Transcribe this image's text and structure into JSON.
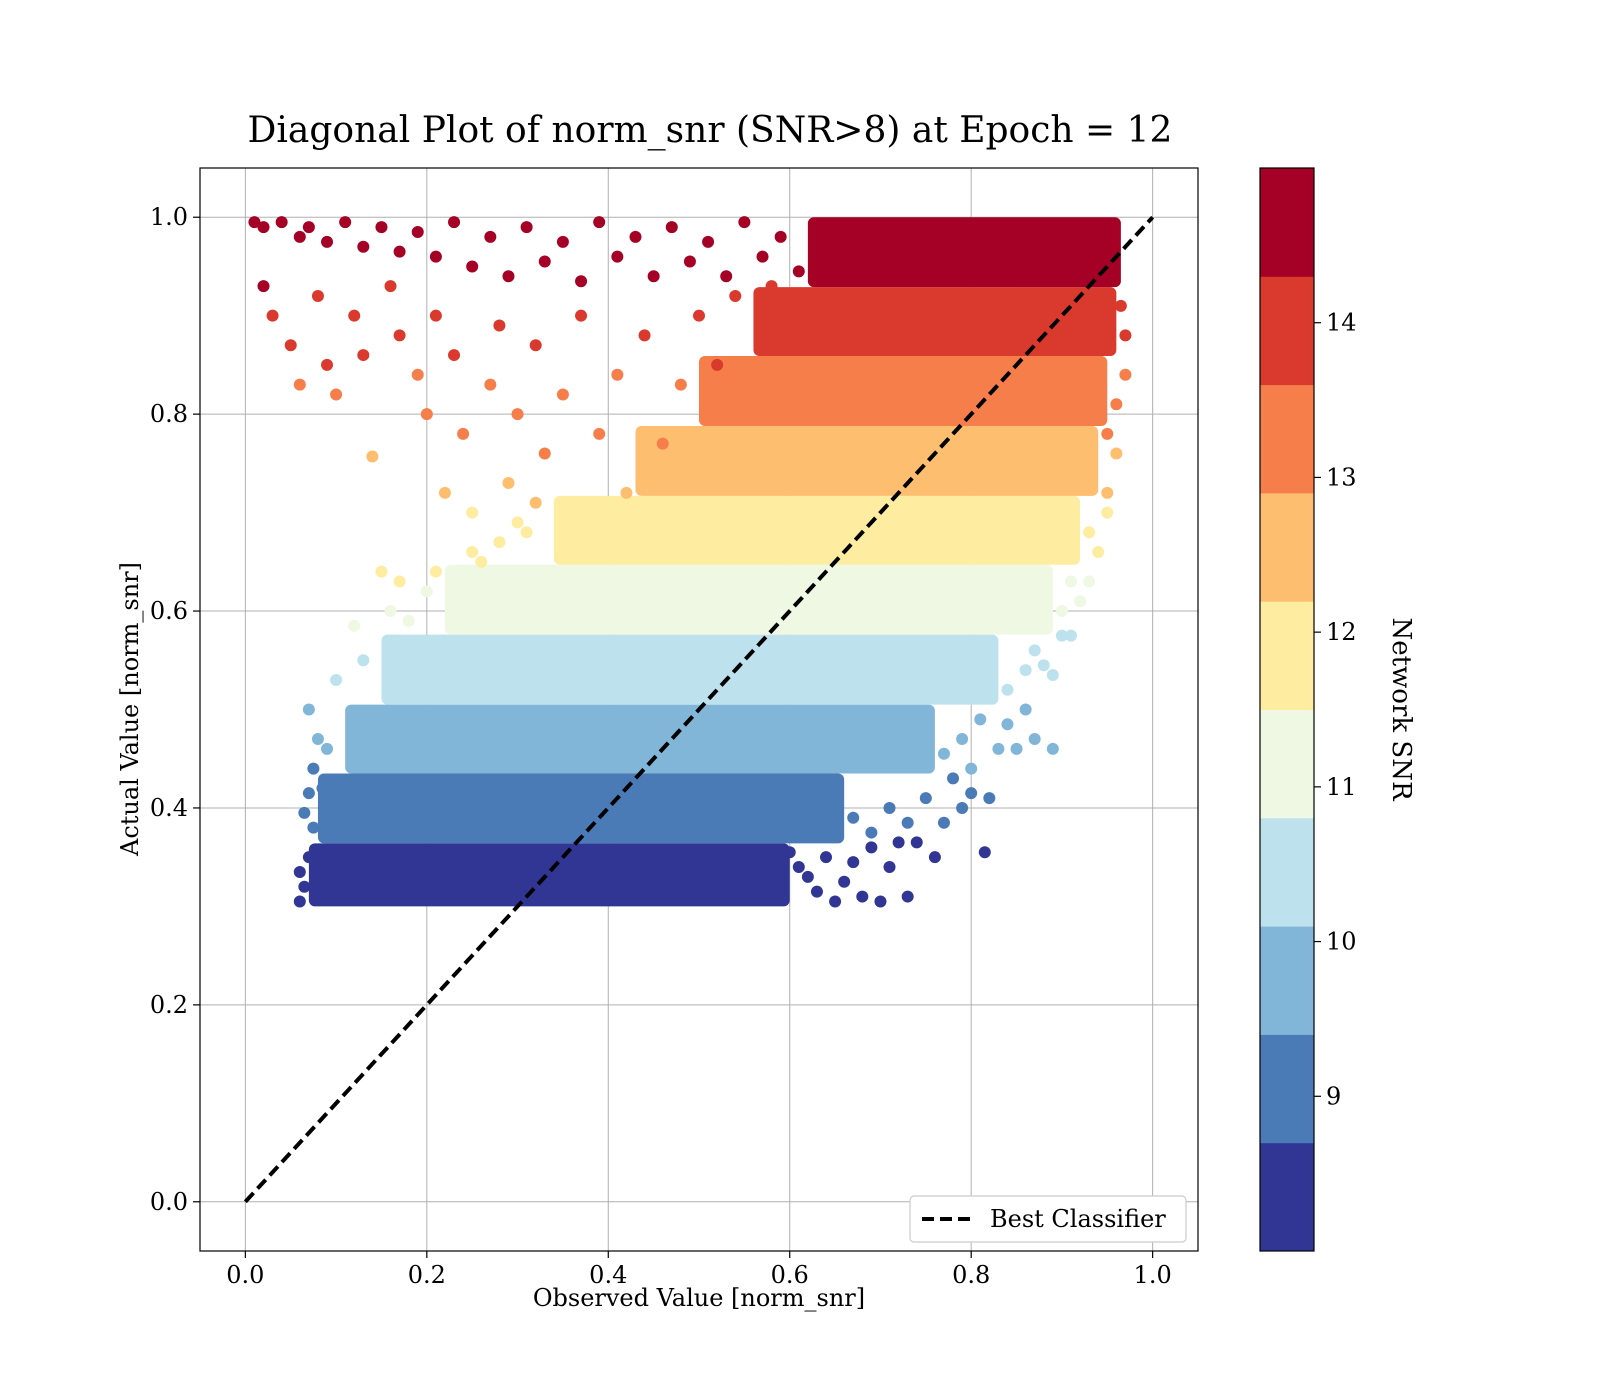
{
  "chart_data": {
    "type": "scatter",
    "title": "Diagonal Plot of norm_snr (SNR>8) at Epoch = 12",
    "xlabel": "Observed Value [norm_snr]",
    "ylabel": "Actual Value [norm_snr]",
    "xlim": [
      -0.05,
      1.05
    ],
    "ylim": [
      -0.05,
      1.05
    ],
    "xticks": [
      0.0,
      0.2,
      0.4,
      0.6,
      0.8,
      1.0
    ],
    "yticks": [
      0.0,
      0.2,
      0.4,
      0.6,
      0.8,
      1.0
    ],
    "xtick_labels": [
      "0.0",
      "0.2",
      "0.4",
      "0.6",
      "0.8",
      "1.0"
    ],
    "ytick_labels": [
      "0.0",
      "0.2",
      "0.4",
      "0.6",
      "0.8",
      "1.0"
    ],
    "grid": true,
    "legend": {
      "placement": "lower-right",
      "entries": [
        "Best Classifier"
      ]
    },
    "reference_line": {
      "name": "Best Classifier",
      "x": [
        0.0,
        1.0
      ],
      "y": [
        0.0,
        1.0
      ],
      "style": "dashed",
      "color": "#000000"
    },
    "colorbar": {
      "label": "Network SNR",
      "range": [
        8.0,
        15.0
      ],
      "ticks": [
        9,
        10,
        11,
        12,
        13,
        14
      ],
      "tick_labels": [
        "9",
        "10",
        "11",
        "12",
        "13",
        "14"
      ],
      "colors": [
        "#313695",
        "#4a7bb7",
        "#82b6d8",
        "#bde2ee",
        "#eef8e3",
        "#feeda1",
        "#fdbf6f",
        "#f67e4b",
        "#da3a2e",
        "#a50026"
      ]
    },
    "bands": [
      {
        "snr": 8.35,
        "y_range": [
          0.3,
          0.364
        ],
        "x_range": [
          0.07,
          0.6
        ],
        "color": "#313695"
      },
      {
        "snr": 9.05,
        "y_range": [
          0.364,
          0.435
        ],
        "x_range": [
          0.08,
          0.66
        ],
        "color": "#4a7bb7"
      },
      {
        "snr": 9.75,
        "y_range": [
          0.435,
          0.505
        ],
        "x_range": [
          0.11,
          0.76
        ],
        "color": "#82b6d8"
      },
      {
        "snr": 10.45,
        "y_range": [
          0.505,
          0.576
        ],
        "x_range": [
          0.15,
          0.83
        ],
        "color": "#bde2ee"
      },
      {
        "snr": 11.15,
        "y_range": [
          0.576,
          0.647
        ],
        "x_range": [
          0.22,
          0.89
        ],
        "color": "#eef8e3"
      },
      {
        "snr": 11.85,
        "y_range": [
          0.647,
          0.717
        ],
        "x_range": [
          0.34,
          0.92
        ],
        "color": "#feeda1"
      },
      {
        "snr": 12.55,
        "y_range": [
          0.717,
          0.788
        ],
        "x_range": [
          0.43,
          0.94
        ],
        "color": "#fdbf6f"
      },
      {
        "snr": 13.25,
        "y_range": [
          0.788,
          0.859
        ],
        "x_range": [
          0.5,
          0.95
        ],
        "color": "#f67e4b"
      },
      {
        "snr": 13.95,
        "y_range": [
          0.859,
          0.929
        ],
        "x_range": [
          0.56,
          0.96
        ],
        "color": "#da3a2e"
      },
      {
        "snr": 14.65,
        "y_range": [
          0.929,
          1.0
        ],
        "x_range": [
          0.62,
          0.965
        ],
        "color": "#a50026"
      }
    ],
    "scatter_points": [
      [
        0.01,
        0.995,
        14.7
      ],
      [
        0.02,
        0.99,
        14.8
      ],
      [
        0.04,
        0.995,
        14.6
      ],
      [
        0.06,
        0.98,
        14.7
      ],
      [
        0.07,
        0.99,
        14.9
      ],
      [
        0.09,
        0.975,
        14.5
      ],
      [
        0.11,
        0.995,
        14.8
      ],
      [
        0.13,
        0.97,
        14.6
      ],
      [
        0.15,
        0.99,
        14.7
      ],
      [
        0.17,
        0.965,
        14.5
      ],
      [
        0.19,
        0.985,
        14.8
      ],
      [
        0.21,
        0.96,
        14.6
      ],
      [
        0.23,
        0.995,
        14.9
      ],
      [
        0.25,
        0.95,
        14.4
      ],
      [
        0.27,
        0.98,
        14.7
      ],
      [
        0.29,
        0.94,
        14.3
      ],
      [
        0.31,
        0.99,
        14.8
      ],
      [
        0.33,
        0.955,
        14.5
      ],
      [
        0.35,
        0.975,
        14.6
      ],
      [
        0.37,
        0.935,
        14.3
      ],
      [
        0.39,
        0.995,
        14.9
      ],
      [
        0.41,
        0.96,
        14.5
      ],
      [
        0.43,
        0.98,
        14.7
      ],
      [
        0.45,
        0.94,
        14.3
      ],
      [
        0.47,
        0.99,
        14.8
      ],
      [
        0.49,
        0.955,
        14.5
      ],
      [
        0.51,
        0.975,
        14.6
      ],
      [
        0.53,
        0.94,
        14.4
      ],
      [
        0.55,
        0.995,
        14.9
      ],
      [
        0.57,
        0.96,
        14.5
      ],
      [
        0.59,
        0.98,
        14.7
      ],
      [
        0.61,
        0.945,
        14.4
      ],
      [
        0.02,
        0.93,
        14.3
      ],
      [
        0.03,
        0.9,
        14.0
      ],
      [
        0.05,
        0.87,
        13.9
      ],
      [
        0.06,
        0.83,
        13.6
      ],
      [
        0.08,
        0.92,
        14.1
      ],
      [
        0.09,
        0.85,
        13.8
      ],
      [
        0.1,
        0.82,
        13.5
      ],
      [
        0.12,
        0.9,
        14.0
      ],
      [
        0.13,
        0.86,
        13.8
      ],
      [
        0.14,
        0.757,
        12.8
      ],
      [
        0.16,
        0.93,
        14.2
      ],
      [
        0.17,
        0.88,
        13.9
      ],
      [
        0.19,
        0.84,
        13.6
      ],
      [
        0.2,
        0.8,
        13.2
      ],
      [
        0.21,
        0.9,
        14.0
      ],
      [
        0.22,
        0.72,
        12.4
      ],
      [
        0.23,
        0.86,
        13.8
      ],
      [
        0.24,
        0.78,
        13.0
      ],
      [
        0.25,
        0.7,
        12.2
      ],
      [
        0.27,
        0.83,
        13.5
      ],
      [
        0.28,
        0.89,
        14.0
      ],
      [
        0.29,
        0.73,
        12.5
      ],
      [
        0.3,
        0.8,
        13.1
      ],
      [
        0.31,
        0.68,
        12.0
      ],
      [
        0.32,
        0.87,
        13.9
      ],
      [
        0.33,
        0.76,
        12.9
      ],
      [
        0.35,
        0.82,
        13.4
      ],
      [
        0.36,
        0.7,
        12.2
      ],
      [
        0.37,
        0.9,
        14.0
      ],
      [
        0.38,
        0.66,
        11.8
      ],
      [
        0.39,
        0.78,
        13.0
      ],
      [
        0.41,
        0.84,
        13.6
      ],
      [
        0.42,
        0.72,
        12.4
      ],
      [
        0.44,
        0.88,
        13.9
      ],
      [
        0.46,
        0.77,
        13.0
      ],
      [
        0.48,
        0.83,
        13.5
      ],
      [
        0.5,
        0.9,
        14.0
      ],
      [
        0.52,
        0.85,
        13.7
      ],
      [
        0.54,
        0.92,
        14.1
      ],
      [
        0.58,
        0.93,
        14.2
      ],
      [
        0.1,
        0.53,
        10.5
      ],
      [
        0.12,
        0.585,
        11.1
      ],
      [
        0.13,
        0.55,
        10.7
      ],
      [
        0.15,
        0.64,
        11.6
      ],
      [
        0.16,
        0.6,
        11.3
      ],
      [
        0.17,
        0.63,
        11.5
      ],
      [
        0.18,
        0.59,
        11.2
      ],
      [
        0.2,
        0.62,
        11.4
      ],
      [
        0.21,
        0.64,
        11.6
      ],
      [
        0.23,
        0.6,
        11.3
      ],
      [
        0.25,
        0.66,
        11.8
      ],
      [
        0.26,
        0.65,
        11.7
      ],
      [
        0.28,
        0.67,
        11.9
      ],
      [
        0.3,
        0.69,
        12.1
      ],
      [
        0.32,
        0.71,
        12.3
      ],
      [
        0.07,
        0.5,
        9.9
      ],
      [
        0.075,
        0.44,
        9.3
      ],
      [
        0.08,
        0.47,
        9.7
      ],
      [
        0.085,
        0.42,
        9.2
      ],
      [
        0.09,
        0.46,
        9.6
      ],
      [
        0.065,
        0.395,
        8.9
      ],
      [
        0.07,
        0.415,
        9.1
      ],
      [
        0.075,
        0.38,
        8.8
      ],
      [
        0.06,
        0.335,
        8.4
      ],
      [
        0.06,
        0.305,
        8.2
      ],
      [
        0.065,
        0.32,
        8.3
      ],
      [
        0.07,
        0.35,
        8.5
      ],
      [
        0.6,
        0.355,
        8.5
      ],
      [
        0.61,
        0.34,
        8.4
      ],
      [
        0.62,
        0.33,
        8.3
      ],
      [
        0.63,
        0.315,
        8.2
      ],
      [
        0.64,
        0.35,
        8.5
      ],
      [
        0.65,
        0.305,
        8.2
      ],
      [
        0.66,
        0.325,
        8.3
      ],
      [
        0.67,
        0.345,
        8.4
      ],
      [
        0.68,
        0.31,
        8.2
      ],
      [
        0.69,
        0.36,
        8.5
      ],
      [
        0.7,
        0.305,
        8.1
      ],
      [
        0.71,
        0.34,
        8.4
      ],
      [
        0.72,
        0.365,
        8.6
      ],
      [
        0.73,
        0.31,
        8.2
      ],
      [
        0.74,
        0.365,
        8.6
      ],
      [
        0.76,
        0.35,
        8.5
      ],
      [
        0.815,
        0.355,
        8.5
      ],
      [
        0.67,
        0.39,
        8.9
      ],
      [
        0.69,
        0.375,
        8.8
      ],
      [
        0.71,
        0.4,
        9.0
      ],
      [
        0.73,
        0.385,
        8.9
      ],
      [
        0.75,
        0.41,
        9.1
      ],
      [
        0.77,
        0.385,
        8.9
      ],
      [
        0.78,
        0.43,
        9.3
      ],
      [
        0.79,
        0.4,
        9.0
      ],
      [
        0.8,
        0.415,
        9.1
      ],
      [
        0.82,
        0.41,
        9.1
      ],
      [
        0.77,
        0.455,
        9.6
      ],
      [
        0.79,
        0.47,
        9.7
      ],
      [
        0.8,
        0.44,
        9.4
      ],
      [
        0.81,
        0.49,
        9.9
      ],
      [
        0.83,
        0.46,
        9.6
      ],
      [
        0.84,
        0.485,
        9.8
      ],
      [
        0.85,
        0.46,
        9.6
      ],
      [
        0.86,
        0.5,
        10.0
      ],
      [
        0.87,
        0.47,
        9.7
      ],
      [
        0.89,
        0.46,
        9.6
      ],
      [
        0.84,
        0.52,
        10.2
      ],
      [
        0.86,
        0.54,
        10.4
      ],
      [
        0.87,
        0.56,
        10.6
      ],
      [
        0.88,
        0.545,
        10.4
      ],
      [
        0.89,
        0.535,
        10.3
      ],
      [
        0.9,
        0.575,
        10.7
      ],
      [
        0.91,
        0.575,
        10.7
      ],
      [
        0.9,
        0.6,
        11.0
      ],
      [
        0.91,
        0.63,
        11.4
      ],
      [
        0.92,
        0.61,
        11.2
      ],
      [
        0.93,
        0.63,
        11.4
      ],
      [
        0.93,
        0.68,
        12.0
      ],
      [
        0.94,
        0.66,
        11.8
      ],
      [
        0.95,
        0.7,
        12.2
      ],
      [
        0.95,
        0.72,
        12.4
      ],
      [
        0.95,
        0.78,
        13.0
      ],
      [
        0.96,
        0.76,
        12.8
      ],
      [
        0.96,
        0.81,
        13.3
      ],
      [
        0.97,
        0.84,
        13.6
      ],
      [
        0.97,
        0.88,
        13.9
      ],
      [
        0.965,
        0.91,
        14.1
      ]
    ]
  }
}
